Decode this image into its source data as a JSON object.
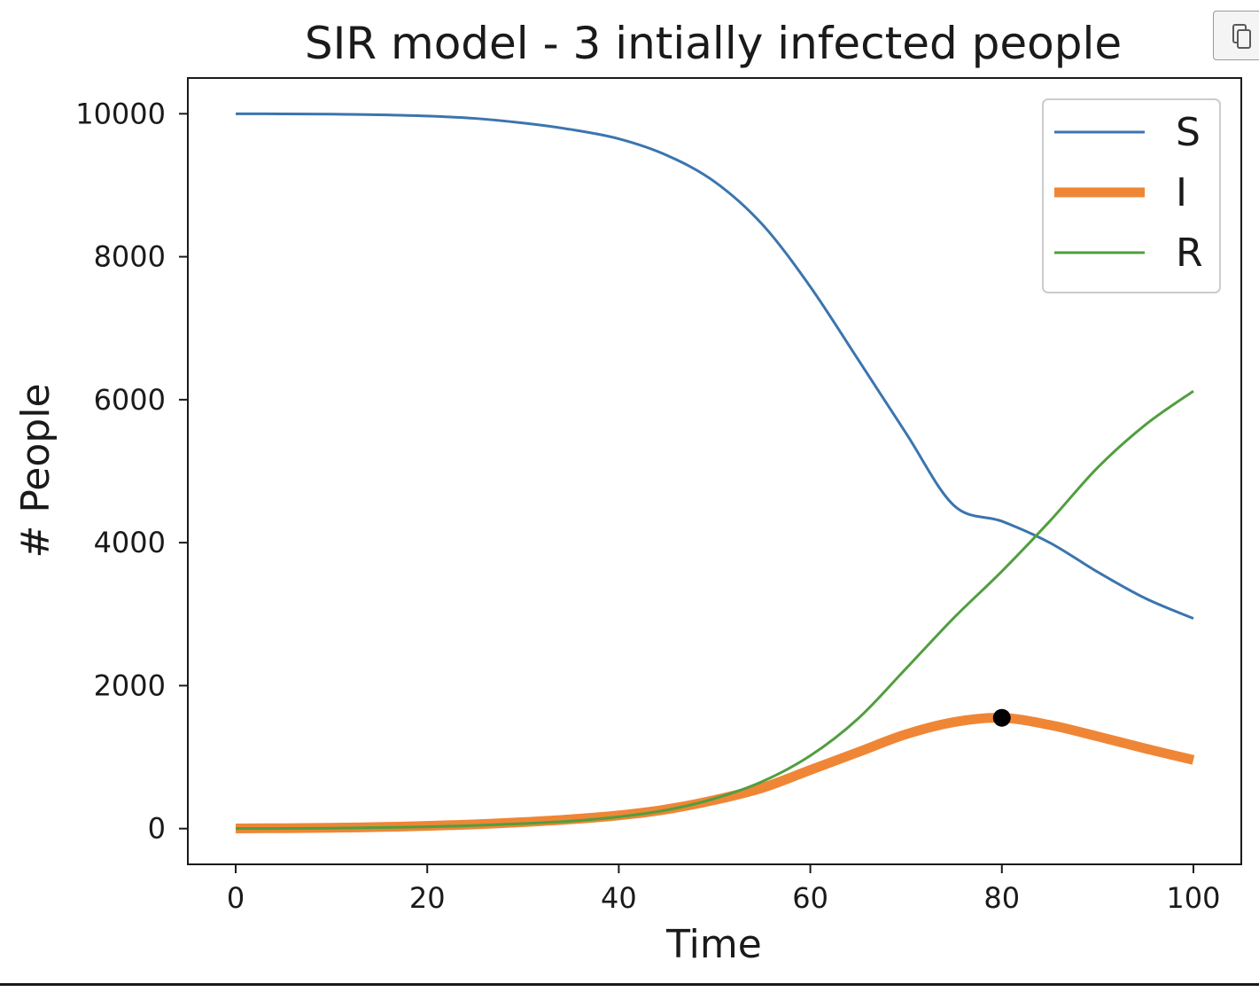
{
  "toolbar": {
    "copy_icon": "copy-icon"
  },
  "chart_data": {
    "type": "line",
    "title": "SIR model - 3 intially infected people",
    "xlabel": "Time",
    "ylabel": "# People",
    "xlim": [
      -5,
      105
    ],
    "ylim": [
      -500,
      10500
    ],
    "xticks": [
      0,
      20,
      40,
      60,
      80,
      100
    ],
    "xtick_labels": [
      "0",
      "20",
      "40",
      "60",
      "80",
      "100"
    ],
    "yticks": [
      0,
      2000,
      4000,
      6000,
      8000,
      10000
    ],
    "ytick_labels": [
      "0",
      "2000",
      "4000",
      "6000",
      "8000",
      "10000"
    ],
    "grid": false,
    "legend_position": "top-right",
    "x": [
      0,
      5,
      10,
      15,
      20,
      25,
      30,
      35,
      40,
      45,
      50,
      55,
      60,
      65,
      70,
      75,
      80,
      85,
      90,
      95,
      100
    ],
    "series": [
      {
        "name": "S",
        "color": "#3b75af",
        "values": [
          10000,
          9998,
          9994,
          9985,
          9968,
          9935,
          9870,
          9780,
          9650,
          9420,
          9050,
          8450,
          7580,
          6560,
          5530,
          4520,
          4300,
          4000,
          3590,
          3220,
          2940
        ]
      },
      {
        "name": "I",
        "color": "#ef8636",
        "values": [
          3,
          6,
          12,
          22,
          38,
          60,
          90,
          130,
          185,
          270,
          400,
          570,
          820,
          1070,
          1320,
          1490,
          1550,
          1450,
          1290,
          1120,
          960
        ]
      },
      {
        "name": "R",
        "color": "#519e3e",
        "values": [
          0,
          2,
          6,
          14,
          26,
          44,
          70,
          105,
          165,
          260,
          420,
          660,
          1020,
          1540,
          2240,
          2950,
          3600,
          4300,
          5050,
          5650,
          6120
        ]
      }
    ],
    "highlight_point": {
      "x": 80,
      "y": 1550,
      "color": "#000000"
    }
  }
}
